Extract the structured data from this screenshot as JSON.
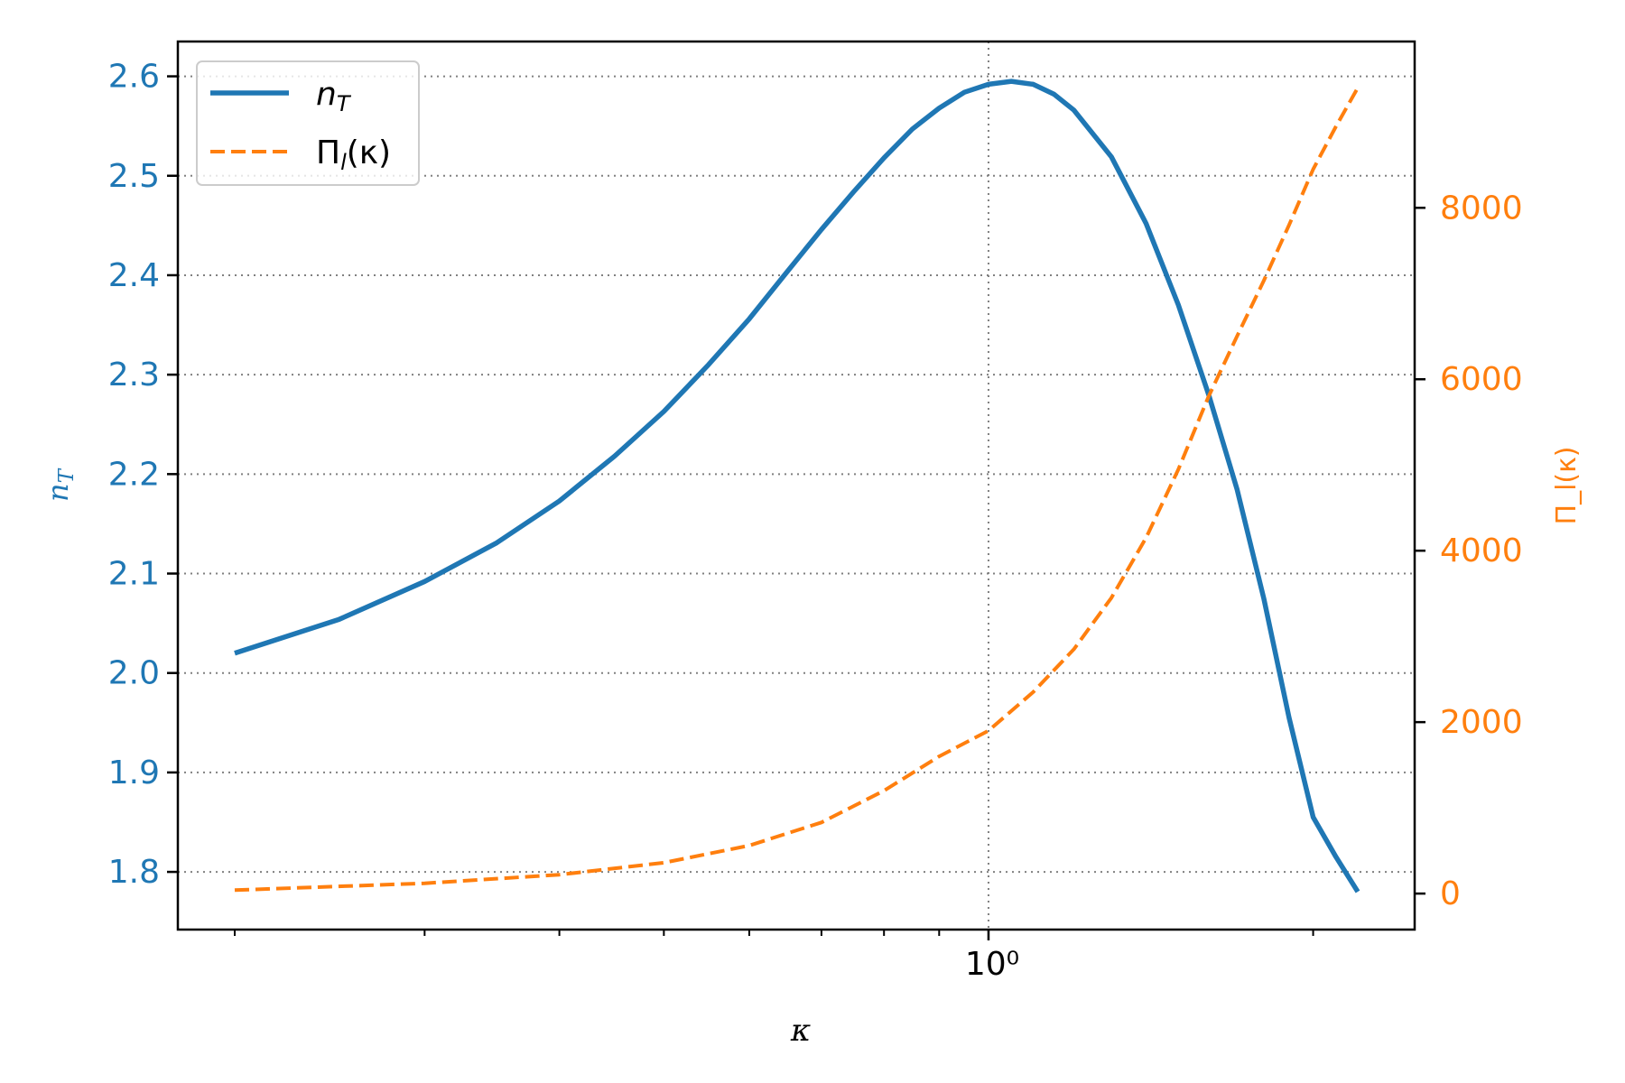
{
  "chart_data": {
    "type": "line",
    "x_scale": "log",
    "x_range": [
      0.2,
      2.2
    ],
    "xlabel": "κ",
    "x_tick_labels": [
      {
        "value": 1.0,
        "label": "10⁰"
      }
    ],
    "x_minor_ticks": [
      0.2,
      0.3,
      0.4,
      0.5,
      0.6,
      0.7,
      0.8,
      0.9,
      2.0
    ],
    "grid": true,
    "legend_position": "upper left",
    "left_axis": {
      "label_base": "n",
      "label_sub": "T",
      "color": "#1f77b4",
      "range": [
        1.742,
        2.635
      ],
      "ticks": [
        {
          "value": 1.8,
          "label": "1.8"
        },
        {
          "value": 1.9,
          "label": "1.9"
        },
        {
          "value": 2.0,
          "label": "2.0"
        },
        {
          "value": 2.1,
          "label": "2.1"
        },
        {
          "value": 2.2,
          "label": "2.2"
        },
        {
          "value": 2.3,
          "label": "2.3"
        },
        {
          "value": 2.4,
          "label": "2.4"
        },
        {
          "value": 2.5,
          "label": "2.5"
        },
        {
          "value": 2.6,
          "label": "2.6"
        }
      ]
    },
    "right_axis": {
      "label": "Π_l(κ)",
      "color": "#ff7f0e",
      "range": [
        -420,
        9940
      ],
      "ticks": [
        {
          "value": 0,
          "label": "0"
        },
        {
          "value": 2000,
          "label": "2000"
        },
        {
          "value": 4000,
          "label": "4000"
        },
        {
          "value": 6000,
          "label": "6000"
        },
        {
          "value": 8000,
          "label": "8000"
        }
      ]
    },
    "series": [
      {
        "name": "n_T",
        "axis": "left",
        "color": "#1f77b4",
        "style": "solid",
        "x": [
          0.2,
          0.25,
          0.3,
          0.35,
          0.4,
          0.45,
          0.5,
          0.55,
          0.6,
          0.65,
          0.7,
          0.75,
          0.8,
          0.85,
          0.9,
          0.95,
          1.0,
          1.05,
          1.1,
          1.15,
          1.2,
          1.3,
          1.4,
          1.5,
          1.6,
          1.7,
          1.8,
          1.9,
          2.0,
          2.1,
          2.2
        ],
        "y": [
          2.02,
          2.054,
          2.092,
          2.131,
          2.173,
          2.218,
          2.263,
          2.31,
          2.356,
          2.403,
          2.446,
          2.484,
          2.518,
          2.547,
          2.568,
          2.584,
          2.592,
          2.595,
          2.592,
          2.582,
          2.566,
          2.519,
          2.452,
          2.37,
          2.28,
          2.185,
          2.075,
          1.955,
          1.855,
          1.815,
          1.78
        ]
      },
      {
        "name": "Π_l(κ)",
        "axis": "right",
        "color": "#ff7f0e",
        "style": "dashed",
        "x": [
          0.2,
          0.3,
          0.4,
          0.5,
          0.6,
          0.7,
          0.8,
          0.9,
          1.0,
          1.1,
          1.2,
          1.3,
          1.4,
          1.5,
          1.6,
          1.7,
          1.8,
          1.9,
          2.0,
          2.1,
          2.2
        ],
        "y": [
          40,
          120,
          220,
          360,
          560,
          830,
          1200,
          1600,
          1900,
          2350,
          2850,
          3450,
          4150,
          4950,
          5800,
          6500,
          7150,
          7800,
          8450,
          8950,
          9400
        ]
      }
    ],
    "legend": [
      {
        "base": "n",
        "sub": "T",
        "style": "solid",
        "color": "#1f77b4"
      },
      {
        "base": "Π",
        "sub": "l",
        "tail": "(κ)",
        "style": "dashed",
        "color": "#ff7f0e"
      }
    ]
  }
}
